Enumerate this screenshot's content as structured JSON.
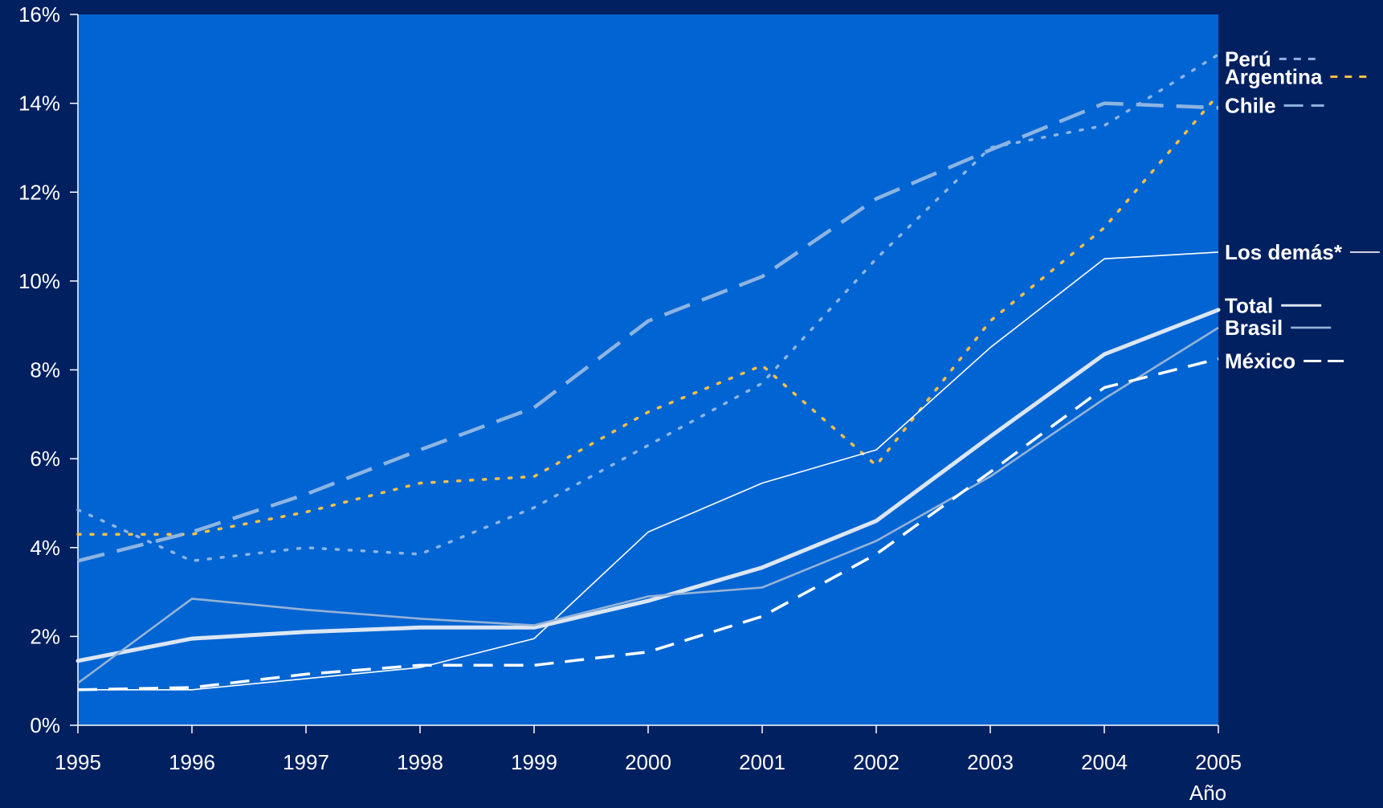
{
  "chart_data": {
    "type": "line",
    "title": "",
    "xlabel": "Año",
    "ylabel": "",
    "x": [
      "1995",
      "1996",
      "1997",
      "1998",
      "1999",
      "2000",
      "2001",
      "2002",
      "2003",
      "2004",
      "2005"
    ],
    "ylim": [
      0,
      16
    ],
    "yticks": [
      0,
      2,
      4,
      6,
      8,
      10,
      12,
      14,
      16
    ],
    "ytick_labels": [
      "0%",
      "2%",
      "4%",
      "6%",
      "8%",
      "10%",
      "12%",
      "14%",
      "16%"
    ],
    "grid": false,
    "legend": "right, labels at line ends",
    "plot_background": "#0064D2",
    "page_background": "#002060",
    "series": [
      {
        "name": "Perú",
        "color": "#8DB4E2",
        "style": "dotted",
        "values": [
          4.85,
          3.7,
          4.0,
          3.85,
          4.9,
          6.3,
          7.7,
          10.5,
          13.0,
          13.5,
          15.1
        ]
      },
      {
        "name": "Argentina",
        "color": "#F9C045",
        "style": "dotted",
        "values": [
          4.3,
          4.3,
          4.8,
          5.45,
          5.6,
          7.05,
          8.1,
          5.85,
          9.1,
          11.2,
          14.2
        ]
      },
      {
        "name": "Chile",
        "color": "#8DB4E2",
        "style": "longdash",
        "values": [
          3.7,
          4.35,
          5.2,
          6.2,
          7.15,
          9.1,
          10.1,
          11.85,
          12.95,
          14.0,
          13.9
        ]
      },
      {
        "name": "Los demás*",
        "color": "#FFFFFF",
        "style": "thin",
        "values": [
          0.8,
          0.8,
          1.05,
          1.3,
          1.95,
          4.35,
          5.45,
          6.2,
          8.5,
          10.5,
          10.65
        ]
      },
      {
        "name": "Total",
        "color": "#DCE6F2",
        "style": "thick",
        "values": [
          1.45,
          1.95,
          2.1,
          2.2,
          2.2,
          2.8,
          3.55,
          4.6,
          6.5,
          8.35,
          9.35
        ]
      },
      {
        "name": "Brasil",
        "color": "#95B3D7",
        "style": "solid",
        "values": [
          0.95,
          2.85,
          2.6,
          2.4,
          2.25,
          2.9,
          3.1,
          4.15,
          5.6,
          7.35,
          8.95
        ]
      },
      {
        "name": "México",
        "color": "#FFFFFF",
        "style": "dash",
        "values": [
          0.8,
          0.85,
          1.15,
          1.35,
          1.35,
          1.65,
          2.45,
          3.85,
          5.7,
          7.6,
          8.25
        ]
      }
    ],
    "legend_labels": [
      {
        "series": "Perú",
        "text": "Perú",
        "y": 15.0
      },
      {
        "series": "Argentina",
        "text": "Argentina",
        "y": 14.6
      },
      {
        "series": "Chile",
        "text": "Chile",
        "y": 13.95
      },
      {
        "series": "Los demás*",
        "text": "Los demás*",
        "y": 10.65
      },
      {
        "series": "Total",
        "text": "Total",
        "y": 9.45
      },
      {
        "series": "Brasil",
        "text": "Brasil",
        "y": 8.95
      },
      {
        "series": "México",
        "text": "México",
        "y": 8.2
      }
    ]
  }
}
